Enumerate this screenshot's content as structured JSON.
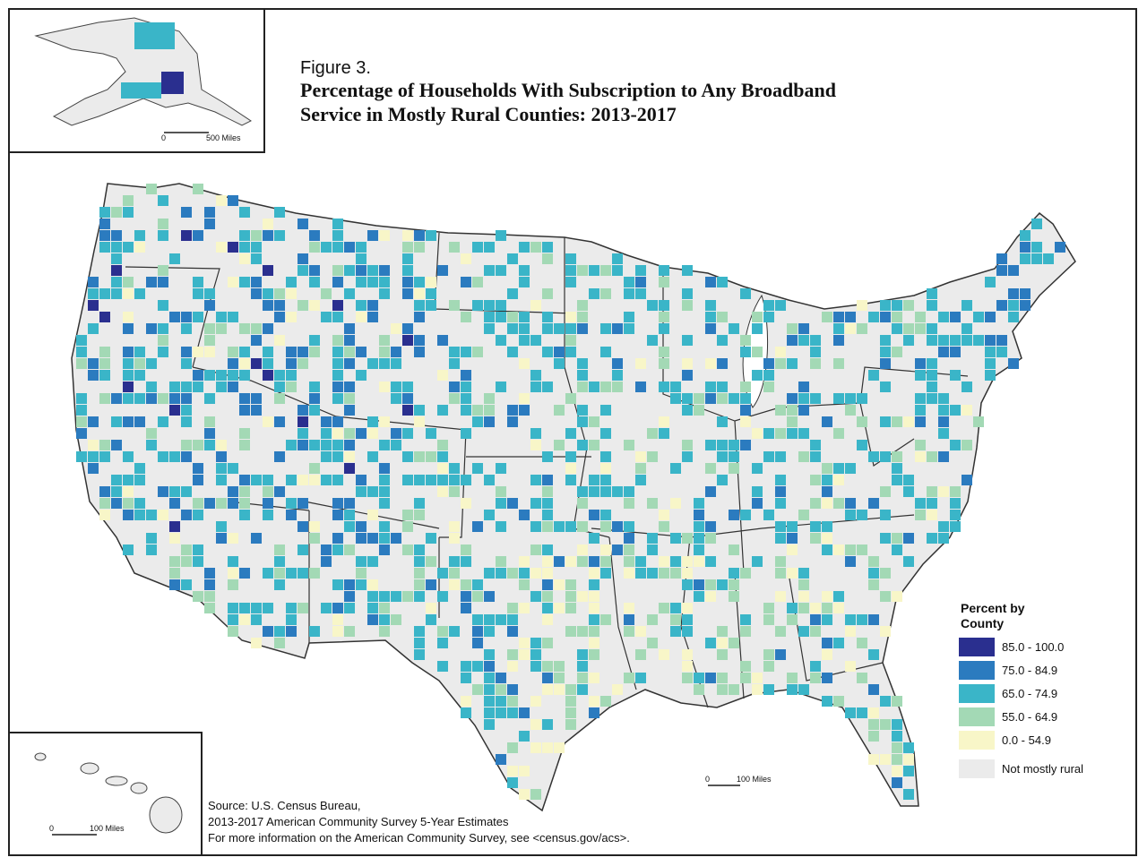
{
  "figure_label": "Figure 3.",
  "title_lines": [
    "Percentage of Households With Subscription to Any Broadband",
    "Service in Mostly Rural Counties: 2013-2017"
  ],
  "legend": {
    "title_lines": [
      "Percent by",
      "County"
    ],
    "items": [
      {
        "label": "85.0 - 100.0",
        "color": "#2a2f8f"
      },
      {
        "label": "75.0 - 84.9",
        "color": "#2b7bbf"
      },
      {
        "label": "65.0 - 74.9",
        "color": "#3ab5c8"
      },
      {
        "label": "55.0 - 64.9",
        "color": "#a3d9b5"
      },
      {
        "label": "0.0 - 54.9",
        "color": "#f8f6c8"
      },
      {
        "label": "Not mostly rural",
        "color": "#ebebeb"
      }
    ]
  },
  "alaska_scale": [
    "0",
    "500 Miles"
  ],
  "main_scale": [
    "0",
    "100 Miles"
  ],
  "hawaii_scale": [
    "0",
    "100 Miles"
  ],
  "source_lines": [
    "Source: U.S. Census Bureau,",
    "2013-2017 American Community Survey 5-Year Estimates",
    "For more information on the American Community Survey, see <census.gov/acs>."
  ]
}
